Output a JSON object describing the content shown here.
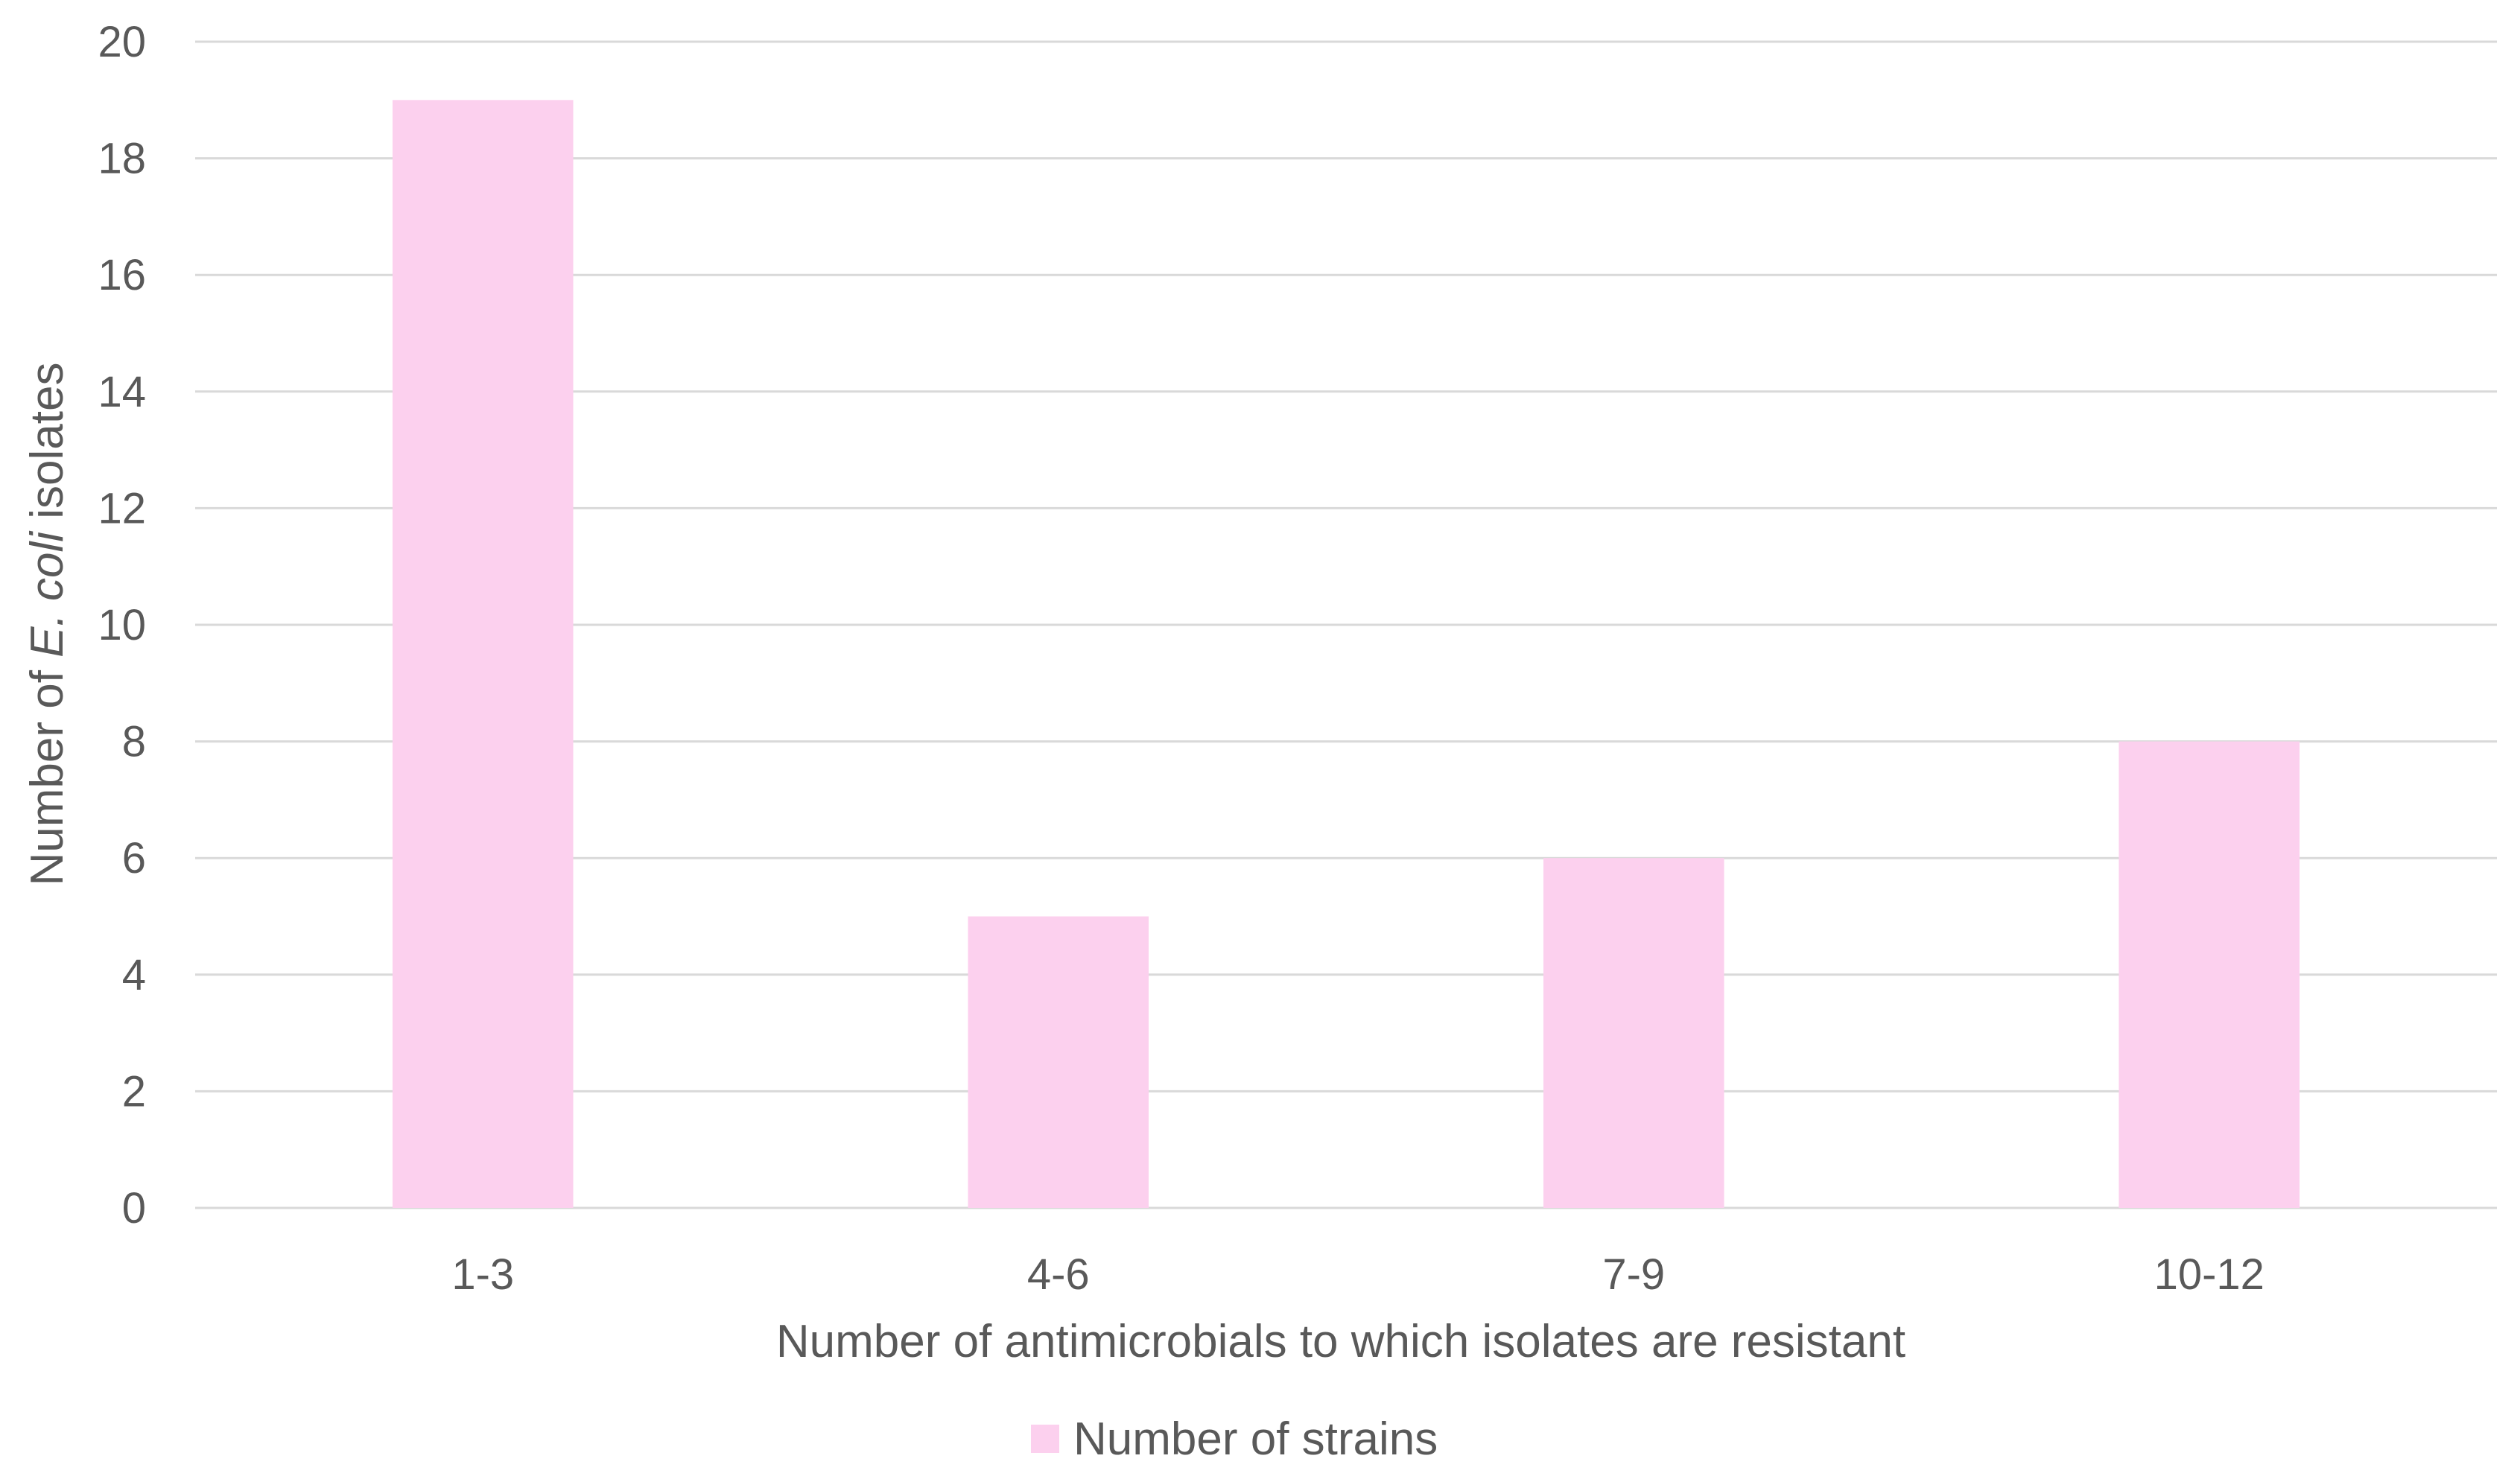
{
  "chart_data": {
    "type": "bar",
    "categories": [
      "1-3",
      "4-6",
      "7-9",
      "10-12"
    ],
    "series": [
      {
        "name": "Number of strains",
        "values": [
          19,
          5,
          6,
          8
        ],
        "color": "#fcd0ee"
      }
    ],
    "xlabel": "Number of antimicrobials to which isolates are resistant",
    "ylabel": {
      "before": "Number of ",
      "italic": "E. coli",
      "after": " isolates"
    },
    "ylim": [
      0,
      20
    ],
    "yticks": [
      0,
      2,
      4,
      6,
      8,
      10,
      12,
      14,
      16,
      18,
      20
    ],
    "grid": true,
    "legend_position": "bottom"
  }
}
